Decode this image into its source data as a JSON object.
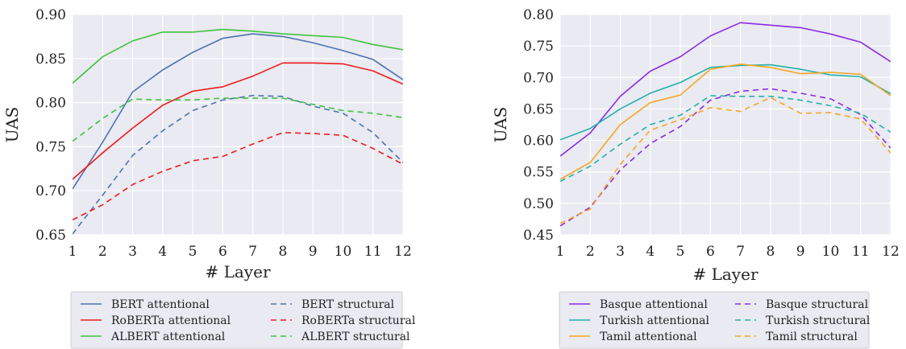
{
  "chart_data": [
    {
      "type": "line",
      "title": "",
      "xlabel": "# Layer",
      "ylabel": "UAS",
      "xlim": [
        1,
        12
      ],
      "ylim": [
        0.65,
        0.9
      ],
      "x": [
        1,
        2,
        3,
        4,
        5,
        6,
        7,
        8,
        9,
        10,
        11,
        12
      ],
      "xticks": [
        "1",
        "2",
        "3",
        "4",
        "5",
        "6",
        "7",
        "8",
        "9",
        "10",
        "11",
        "12"
      ],
      "yticks": [
        0.65,
        0.7,
        0.75,
        0.8,
        0.85,
        0.9
      ],
      "yticklabels": [
        "0.65",
        "0.70",
        "0.75",
        "0.80",
        "0.85",
        "0.90"
      ],
      "grid": true,
      "legend_position": "bottom",
      "series": [
        {
          "name": "BERT attentional",
          "style": "solid",
          "color": "#4c72b0",
          "values": [
            0.702,
            0.755,
            0.812,
            0.837,
            0.857,
            0.873,
            0.878,
            0.875,
            0.868,
            0.859,
            0.849,
            0.826
          ]
        },
        {
          "name": "RoBERTa attentional",
          "style": "solid",
          "color": "#ee1c1c",
          "values": [
            0.713,
            0.743,
            0.771,
            0.797,
            0.813,
            0.818,
            0.83,
            0.845,
            0.845,
            0.844,
            0.836,
            0.821
          ]
        },
        {
          "name": "ALBERT attentional",
          "style": "solid",
          "color": "#3ec43e",
          "values": [
            0.822,
            0.852,
            0.87,
            0.88,
            0.88,
            0.883,
            0.881,
            0.878,
            0.876,
            0.874,
            0.866,
            0.86
          ]
        },
        {
          "name": "BERT structural",
          "style": "dashed",
          "color": "#4c72b0",
          "values": [
            0.651,
            0.695,
            0.74,
            0.768,
            0.791,
            0.803,
            0.808,
            0.807,
            0.796,
            0.788,
            0.766,
            0.732
          ]
        },
        {
          "name": "RoBERTa structural",
          "style": "dashed",
          "color": "#ee1c1c",
          "values": [
            0.667,
            0.684,
            0.707,
            0.722,
            0.734,
            0.739,
            0.753,
            0.766,
            0.765,
            0.763,
            0.748,
            0.73
          ]
        },
        {
          "name": "ALBERT structural",
          "style": "dashed",
          "color": "#3ec43e",
          "values": [
            0.756,
            0.782,
            0.804,
            0.803,
            0.803,
            0.805,
            0.805,
            0.805,
            0.798,
            0.791,
            0.788,
            0.783
          ]
        }
      ]
    },
    {
      "type": "line",
      "title": "",
      "xlabel": "# Layer",
      "ylabel": "UAS",
      "xlim": [
        1,
        12
      ],
      "ylim": [
        0.45,
        0.8
      ],
      "x": [
        1,
        2,
        3,
        4,
        5,
        6,
        7,
        8,
        9,
        10,
        11,
        12
      ],
      "xticks": [
        "1",
        "2",
        "3",
        "4",
        "5",
        "6",
        "7",
        "8",
        "9",
        "10",
        "11",
        "12"
      ],
      "yticks": [
        0.45,
        0.5,
        0.55,
        0.6,
        0.65,
        0.7,
        0.75,
        0.8
      ],
      "yticklabels": [
        "0.45",
        "0.50",
        "0.55",
        "0.60",
        "0.65",
        "0.70",
        "0.75",
        "0.80"
      ],
      "grid": true,
      "legend_position": "bottom",
      "series": [
        {
          "name": "Basque attentional",
          "style": "solid",
          "color": "#8a2be2",
          "values": [
            0.575,
            0.612,
            0.67,
            0.71,
            0.733,
            0.766,
            0.787,
            0.783,
            0.779,
            0.769,
            0.756,
            0.725
          ]
        },
        {
          "name": "Turkish attentional",
          "style": "solid",
          "color": "#20b2aa",
          "values": [
            0.601,
            0.619,
            0.65,
            0.675,
            0.692,
            0.716,
            0.719,
            0.72,
            0.713,
            0.704,
            0.701,
            0.674
          ]
        },
        {
          "name": "Tamil attentional",
          "style": "solid",
          "color": "#f5a623",
          "values": [
            0.538,
            0.565,
            0.625,
            0.66,
            0.672,
            0.713,
            0.721,
            0.716,
            0.706,
            0.708,
            0.705,
            0.671
          ]
        },
        {
          "name": "Basque structural",
          "style": "dashed",
          "color": "#8a2be2",
          "values": [
            0.464,
            0.494,
            0.553,
            0.595,
            0.622,
            0.664,
            0.678,
            0.682,
            0.675,
            0.666,
            0.641,
            0.588
          ]
        },
        {
          "name": "Turkish structural",
          "style": "dashed",
          "color": "#20b2aa",
          "values": [
            0.535,
            0.559,
            0.594,
            0.625,
            0.64,
            0.671,
            0.67,
            0.67,
            0.664,
            0.655,
            0.643,
            0.613
          ]
        },
        {
          "name": "Tamil structural",
          "style": "dashed",
          "color": "#f5a623",
          "values": [
            0.468,
            0.491,
            0.562,
            0.616,
            0.633,
            0.652,
            0.646,
            0.668,
            0.643,
            0.644,
            0.634,
            0.58
          ]
        }
      ]
    }
  ]
}
